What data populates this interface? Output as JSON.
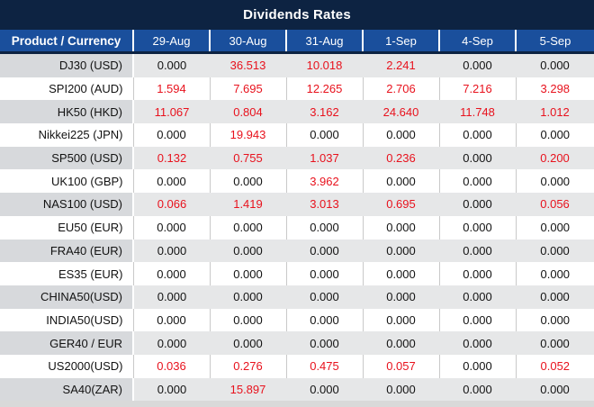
{
  "chart_data": {
    "type": "table",
    "title": "Dividends Rates",
    "columns": [
      "Product / Currency",
      "29-Aug",
      "30-Aug",
      "31-Aug",
      "1-Sep",
      "4-Sep",
      "5-Sep"
    ],
    "rows": [
      {
        "product": "DJ30 (USD)",
        "values": [
          "0.000",
          "36.513",
          "10.018",
          "2.241",
          "0.000",
          "0.000"
        ]
      },
      {
        "product": "SPI200 (AUD)",
        "values": [
          "1.594",
          "7.695",
          "12.265",
          "2.706",
          "7.216",
          "3.298"
        ]
      },
      {
        "product": "HK50 (HKD)",
        "values": [
          "11.067",
          "0.804",
          "3.162",
          "24.640",
          "11.748",
          "1.012"
        ]
      },
      {
        "product": "Nikkei225 (JPN)",
        "values": [
          "0.000",
          "19.943",
          "0.000",
          "0.000",
          "0.000",
          "0.000"
        ]
      },
      {
        "product": "SP500 (USD)",
        "values": [
          "0.132",
          "0.755",
          "1.037",
          "0.236",
          "0.000",
          "0.200"
        ]
      },
      {
        "product": "UK100 (GBP)",
        "values": [
          "0.000",
          "0.000",
          "3.962",
          "0.000",
          "0.000",
          "0.000"
        ]
      },
      {
        "product": "NAS100 (USD)",
        "values": [
          "0.066",
          "1.419",
          "3.013",
          "0.695",
          "0.000",
          "0.056"
        ]
      },
      {
        "product": "EU50 (EUR)",
        "values": [
          "0.000",
          "0.000",
          "0.000",
          "0.000",
          "0.000",
          "0.000"
        ]
      },
      {
        "product": "FRA40 (EUR)",
        "values": [
          "0.000",
          "0.000",
          "0.000",
          "0.000",
          "0.000",
          "0.000"
        ]
      },
      {
        "product": "ES35 (EUR)",
        "values": [
          "0.000",
          "0.000",
          "0.000",
          "0.000",
          "0.000",
          "0.000"
        ]
      },
      {
        "product": "CHINA50(USD)",
        "values": [
          "0.000",
          "0.000",
          "0.000",
          "0.000",
          "0.000",
          "0.000"
        ]
      },
      {
        "product": "INDIA50(USD)",
        "values": [
          "0.000",
          "0.000",
          "0.000",
          "0.000",
          "0.000",
          "0.000"
        ]
      },
      {
        "product": "GER40 / EUR",
        "values": [
          "0.000",
          "0.000",
          "0.000",
          "0.000",
          "0.000",
          "0.000"
        ]
      },
      {
        "product": "US2000(USD)",
        "values": [
          "0.036",
          "0.276",
          "0.475",
          "0.057",
          "0.000",
          "0.052"
        ]
      },
      {
        "product": "SA40(ZAR)",
        "values": [
          "0.000",
          "15.897",
          "0.000",
          "0.000",
          "0.000",
          "0.000"
        ]
      }
    ],
    "layout": {
      "zero_display": "0.000",
      "nonzero_color_rule": "non-zero values shown in red"
    }
  },
  "colors": {
    "title_bg": "#0d2342",
    "header_bg": "#1a4f9c",
    "row_alt_product_bg": "#d7d9dc",
    "row_alt_value_bg": "#e6e7e8",
    "positive_value": "#e8121d",
    "zero_value": "#121212",
    "separator": "#c9c9c9",
    "bottom_strip": "#d9d9d9"
  }
}
